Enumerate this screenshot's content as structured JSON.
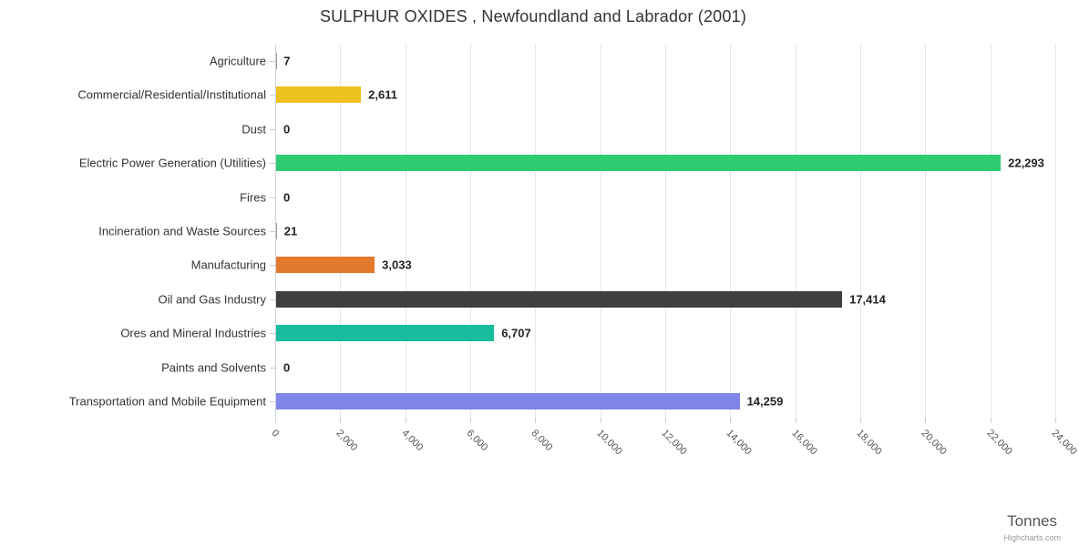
{
  "title": "SULPHUR OXIDES , Newfoundland and Labrador (2001)",
  "xaxis": {
    "title": "Tonnes",
    "tick_labels": [
      "0",
      "2,000",
      "4,000",
      "6,000",
      "8,000",
      "10,000",
      "12,000",
      "14,000",
      "16,000",
      "18,000",
      "20,000",
      "22,000",
      "24,000"
    ],
    "tick_interval": 2000,
    "min": 0,
    "max": 24000
  },
  "credits": "Highcharts.com",
  "colors": {
    "grid": "#e6e6e6",
    "axis": "#ccd1dc",
    "title_text": "#333333",
    "value_label_text": "#222222"
  },
  "chart_data": {
    "type": "bar",
    "title": "SULPHUR OXIDES , Newfoundland and Labrador (2001)",
    "xlabel": "Tonnes",
    "ylabel": "",
    "xlim": [
      0,
      24000
    ],
    "grid": true,
    "legend": false,
    "categories": [
      "Agriculture",
      "Commercial/Residential/Institutional",
      "Dust",
      "Electric Power Generation (Utilities)",
      "Fires",
      "Incineration and Waste Sources",
      "Manufacturing",
      "Oil and Gas Industry",
      "Ores and Mineral Industries",
      "Paints and Solvents",
      "Transportation and Mobile Equipment"
    ],
    "values": [
      7,
      2611,
      0,
      22293,
      0,
      21,
      3033,
      17414,
      6707,
      0,
      14259
    ],
    "value_labels": [
      "7",
      "2,611",
      "0",
      "22,293",
      "0",
      "21",
      "3,033",
      "17,414",
      "6,707",
      "0",
      "14,259"
    ],
    "bar_colors": [
      "#999999",
      "#edc120",
      "#999999",
      "#2ecc71",
      "#999999",
      "#999999",
      "#e2792c",
      "#3f3f3f",
      "#19bc9c",
      "#999999",
      "#8085e9"
    ]
  }
}
